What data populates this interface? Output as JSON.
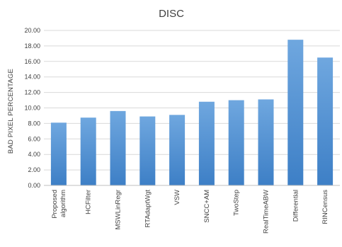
{
  "chart_data": {
    "type": "bar",
    "title": "DISC",
    "xlabel": "",
    "ylabel": "BAD PIXEL PERCENTAGE",
    "ylim": [
      0,
      20
    ],
    "y_ticks": [
      "0.00",
      "2.00",
      "4.00",
      "6.00",
      "8.00",
      "10.00",
      "12.00",
      "14.00",
      "16.00",
      "18.00",
      "20.00"
    ],
    "categories": [
      [
        "Proposed",
        "algorithm"
      ],
      [
        "HCFilter"
      ],
      [
        "MSWLinRegr"
      ],
      [
        "RTAdaptWgt"
      ],
      [
        "VSW"
      ],
      [
        "SNCC+AM"
      ],
      [
        "TwoStep"
      ],
      [
        "RealTimeABW"
      ],
      [
        "Differential"
      ],
      [
        "RINCensus"
      ]
    ],
    "values": [
      8.1,
      8.75,
      9.6,
      8.9,
      9.1,
      10.8,
      11.0,
      11.1,
      18.8,
      16.5
    ],
    "grid": true,
    "legend": "none",
    "colors": {
      "bar_top": "#6fa7df",
      "bar_bottom": "#3d7fc6"
    }
  }
}
